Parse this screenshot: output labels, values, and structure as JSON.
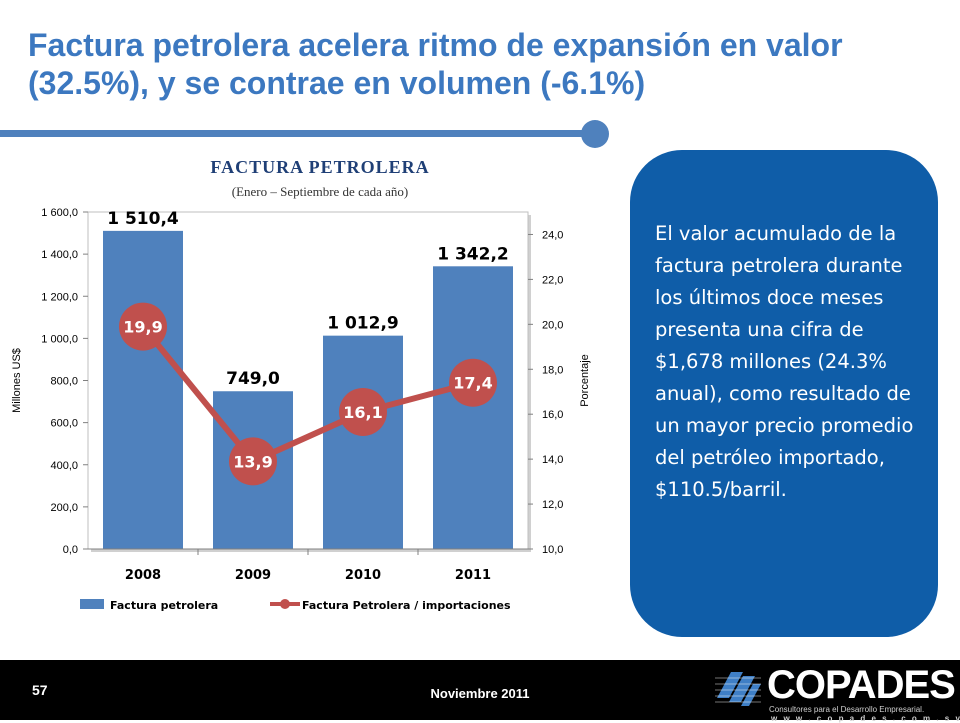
{
  "slide": {
    "title": "Factura petrolera acelera ritmo de expansión en valor (32.5%), y se contrae en volumen (-6.1%)",
    "page_number": "57",
    "date": "Noviembre 2011",
    "callout": "El valor acumulado de la factura petrolera durante los últimos doce meses presenta una cifra de $1,678 millones (24.3% anual), como resultado de un mayor precio promedio del petróleo importado, $110.5/barril."
  },
  "logo": {
    "name": "COPADES",
    "tagline": "Consultores para el Desarrollo Empresarial.",
    "url": "w w w . c o p a d e s . c o m . s v"
  },
  "colors": {
    "title": "#3c78c0",
    "bar": "#4f81bd",
    "line": "#c0504d",
    "panel": "#0f5da8"
  },
  "chart_data": {
    "type": "bar",
    "title": "FACTURA PETROLERA",
    "subtitle": "(Enero – Septiembre de cada año)",
    "categories": [
      "2008",
      "2009",
      "2010",
      "2011"
    ],
    "ylabel": "Millones US$",
    "y2label": "Porcentaje",
    "ylim": [
      0,
      1600
    ],
    "y2lim": [
      10,
      25
    ],
    "y_ticks": [
      "0,0",
      "200,0",
      "400,0",
      "600,0",
      "800,0",
      "1 000,0",
      "1 200,0",
      "1 400,0",
      "1 600,0"
    ],
    "y2_ticks": [
      "10,0",
      "12,0",
      "14,0",
      "16,0",
      "18,0",
      "20,0",
      "22,0",
      "24,0"
    ],
    "legend_position": "bottom",
    "series": [
      {
        "name": "Factura petrolera",
        "type": "bar",
        "axis": "left",
        "values": [
          1510.4,
          749.0,
          1012.9,
          1342.2
        ],
        "labels": [
          "1 510,4",
          "749,0",
          "1 012,9",
          "1 342,2"
        ]
      },
      {
        "name": "Factura Petrolera / importaciones",
        "type": "line",
        "axis": "right",
        "values": [
          19.9,
          13.9,
          16.1,
          17.4
        ],
        "labels": [
          "19,9",
          "13,9",
          "16,1",
          "17,4"
        ]
      }
    ]
  }
}
